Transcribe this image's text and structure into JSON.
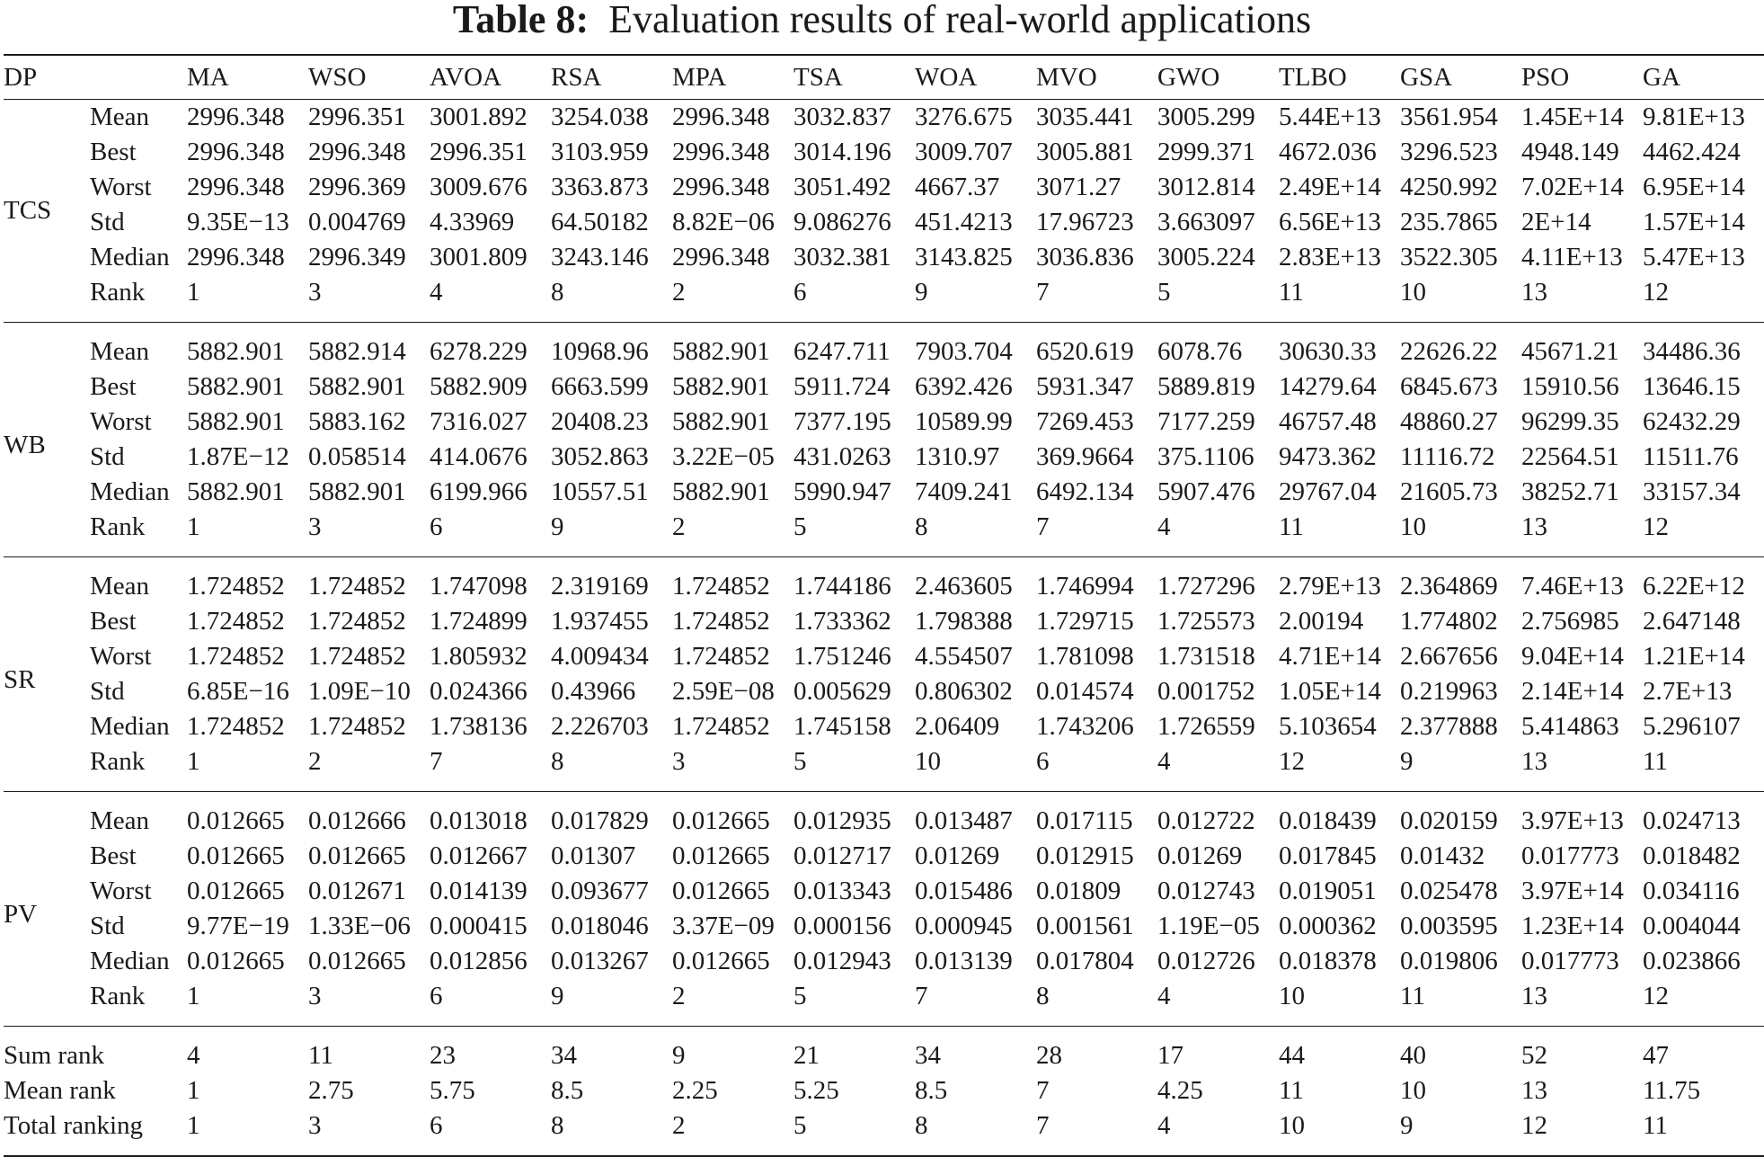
{
  "caption": {
    "label": "Table 8:",
    "text": "Evaluation results of real-world applications"
  },
  "header": {
    "dp": "DP",
    "algorithms": [
      "MA",
      "WSO",
      "AVOA",
      "RSA",
      "MPA",
      "TSA",
      "WOA",
      "MVO",
      "GWO",
      "TLBO",
      "GSA",
      "PSO",
      "GA"
    ]
  },
  "groups": [
    {
      "name": "TCS",
      "rows": [
        {
          "label": "Mean",
          "values": [
            "2996.348",
            "2996.351",
            "3001.892",
            "3254.038",
            "2996.348",
            "3032.837",
            "3276.675",
            "3035.441",
            "3005.299",
            "5.44E+13",
            "3561.954",
            "1.45E+14",
            "9.81E+13"
          ]
        },
        {
          "label": "Best",
          "values": [
            "2996.348",
            "2996.348",
            "2996.351",
            "3103.959",
            "2996.348",
            "3014.196",
            "3009.707",
            "3005.881",
            "2999.371",
            "4672.036",
            "3296.523",
            "4948.149",
            "4462.424"
          ]
        },
        {
          "label": "Worst",
          "values": [
            "2996.348",
            "2996.369",
            "3009.676",
            "3363.873",
            "2996.348",
            "3051.492",
            "4667.37",
            "3071.27",
            "3012.814",
            "2.49E+14",
            "4250.992",
            "7.02E+14",
            "6.95E+14"
          ]
        },
        {
          "label": "Std",
          "values": [
            "9.35E−13",
            "0.004769",
            "4.33969",
            "64.50182",
            "8.82E−06",
            "9.086276",
            "451.4213",
            "17.96723",
            "3.663097",
            "6.56E+13",
            "235.7865",
            "2E+14",
            "1.57E+14"
          ]
        },
        {
          "label": "Median",
          "values": [
            "2996.348",
            "2996.349",
            "3001.809",
            "3243.146",
            "2996.348",
            "3032.381",
            "3143.825",
            "3036.836",
            "3005.224",
            "2.83E+13",
            "3522.305",
            "4.11E+13",
            "5.47E+13"
          ]
        },
        {
          "label": "Rank",
          "values": [
            "1",
            "3",
            "4",
            "8",
            "2",
            "6",
            "9",
            "7",
            "5",
            "11",
            "10",
            "13",
            "12"
          ]
        }
      ]
    },
    {
      "name": "WB",
      "rows": [
        {
          "label": "Mean",
          "values": [
            "5882.901",
            "5882.914",
            "6278.229",
            "10968.96",
            "5882.901",
            "6247.711",
            "7903.704",
            "6520.619",
            "6078.76",
            "30630.33",
            "22626.22",
            "45671.21",
            "34486.36"
          ]
        },
        {
          "label": "Best",
          "values": [
            "5882.901",
            "5882.901",
            "5882.909",
            "6663.599",
            "5882.901",
            "5911.724",
            "6392.426",
            "5931.347",
            "5889.819",
            "14279.64",
            "6845.673",
            "15910.56",
            "13646.15"
          ]
        },
        {
          "label": "Worst",
          "values": [
            "5882.901",
            "5883.162",
            "7316.027",
            "20408.23",
            "5882.901",
            "7377.195",
            "10589.99",
            "7269.453",
            "7177.259",
            "46757.48",
            "48860.27",
            "96299.35",
            "62432.29"
          ]
        },
        {
          "label": "Std",
          "values": [
            "1.87E−12",
            "0.058514",
            "414.0676",
            "3052.863",
            "3.22E−05",
            "431.0263",
            "1310.97",
            "369.9664",
            "375.1106",
            "9473.362",
            "11116.72",
            "22564.51",
            "11511.76"
          ]
        },
        {
          "label": "Median",
          "values": [
            "5882.901",
            "5882.901",
            "6199.966",
            "10557.51",
            "5882.901",
            "5990.947",
            "7409.241",
            "6492.134",
            "5907.476",
            "29767.04",
            "21605.73",
            "38252.71",
            "33157.34"
          ]
        },
        {
          "label": "Rank",
          "values": [
            "1",
            "3",
            "6",
            "9",
            "2",
            "5",
            "8",
            "7",
            "4",
            "11",
            "10",
            "13",
            "12"
          ]
        }
      ]
    },
    {
      "name": "SR",
      "rows": [
        {
          "label": "Mean",
          "values": [
            "1.724852",
            "1.724852",
            "1.747098",
            "2.319169",
            "1.724852",
            "1.744186",
            "2.463605",
            "1.746994",
            "1.727296",
            "2.79E+13",
            "2.364869",
            "7.46E+13",
            "6.22E+12"
          ]
        },
        {
          "label": "Best",
          "values": [
            "1.724852",
            "1.724852",
            "1.724899",
            "1.937455",
            "1.724852",
            "1.733362",
            "1.798388",
            "1.729715",
            "1.725573",
            "2.00194",
            "1.774802",
            "2.756985",
            "2.647148"
          ]
        },
        {
          "label": "Worst",
          "values": [
            "1.724852",
            "1.724852",
            "1.805932",
            "4.009434",
            "1.724852",
            "1.751246",
            "4.554507",
            "1.781098",
            "1.731518",
            "4.71E+14",
            "2.667656",
            "9.04E+14",
            "1.21E+14"
          ]
        },
        {
          "label": "Std",
          "values": [
            "6.85E−16",
            "1.09E−10",
            "0.024366",
            "0.43966",
            "2.59E−08",
            "0.005629",
            "0.806302",
            "0.014574",
            "0.001752",
            "1.05E+14",
            "0.219963",
            "2.14E+14",
            "2.7E+13"
          ]
        },
        {
          "label": "Median",
          "values": [
            "1.724852",
            "1.724852",
            "1.738136",
            "2.226703",
            "1.724852",
            "1.745158",
            "2.06409",
            "1.743206",
            "1.726559",
            "5.103654",
            "2.377888",
            "5.414863",
            "5.296107"
          ]
        },
        {
          "label": "Rank",
          "values": [
            "1",
            "2",
            "7",
            "8",
            "3",
            "5",
            "10",
            "6",
            "4",
            "12",
            "9",
            "13",
            "11"
          ]
        }
      ]
    },
    {
      "name": "PV",
      "rows": [
        {
          "label": "Mean",
          "values": [
            "0.012665",
            "0.012666",
            "0.013018",
            "0.017829",
            "0.012665",
            "0.012935",
            "0.013487",
            "0.017115",
            "0.012722",
            "0.018439",
            "0.020159",
            "3.97E+13",
            "0.024713"
          ]
        },
        {
          "label": "Best",
          "values": [
            "0.012665",
            "0.012665",
            "0.012667",
            "0.01307",
            "0.012665",
            "0.012717",
            "0.01269",
            "0.012915",
            "0.01269",
            "0.017845",
            "0.01432",
            "0.017773",
            "0.018482"
          ]
        },
        {
          "label": "Worst",
          "values": [
            "0.012665",
            "0.012671",
            "0.014139",
            "0.093677",
            "0.012665",
            "0.013343",
            "0.015486",
            "0.01809",
            "0.012743",
            "0.019051",
            "0.025478",
            "3.97E+14",
            "0.034116"
          ]
        },
        {
          "label": "Std",
          "values": [
            "9.77E−19",
            "1.33E−06",
            "0.000415",
            "0.018046",
            "3.37E−09",
            "0.000156",
            "0.000945",
            "0.001561",
            "1.19E−05",
            "0.000362",
            "0.003595",
            "1.23E+14",
            "0.004044"
          ]
        },
        {
          "label": "Median",
          "values": [
            "0.012665",
            "0.012665",
            "0.012856",
            "0.013267",
            "0.012665",
            "0.012943",
            "0.013139",
            "0.017804",
            "0.012726",
            "0.018378",
            "0.019806",
            "0.017773",
            "0.023866"
          ]
        },
        {
          "label": "Rank",
          "values": [
            "1",
            "3",
            "6",
            "9",
            "2",
            "5",
            "7",
            "8",
            "4",
            "10",
            "11",
            "13",
            "12"
          ]
        }
      ]
    }
  ],
  "summary": [
    {
      "label": "Sum rank",
      "values": [
        "4",
        "11",
        "23",
        "34",
        "9",
        "21",
        "34",
        "28",
        "17",
        "44",
        "40",
        "52",
        "47"
      ]
    },
    {
      "label": "Mean rank",
      "values": [
        "1",
        "2.75",
        "5.75",
        "8.5",
        "2.25",
        "5.25",
        "8.5",
        "7",
        "4.25",
        "11",
        "10",
        "13",
        "11.75"
      ]
    },
    {
      "label": "Total ranking",
      "values": [
        "1",
        "3",
        "6",
        "8",
        "2",
        "5",
        "8",
        "7",
        "4",
        "10",
        "9",
        "12",
        "11"
      ]
    }
  ]
}
